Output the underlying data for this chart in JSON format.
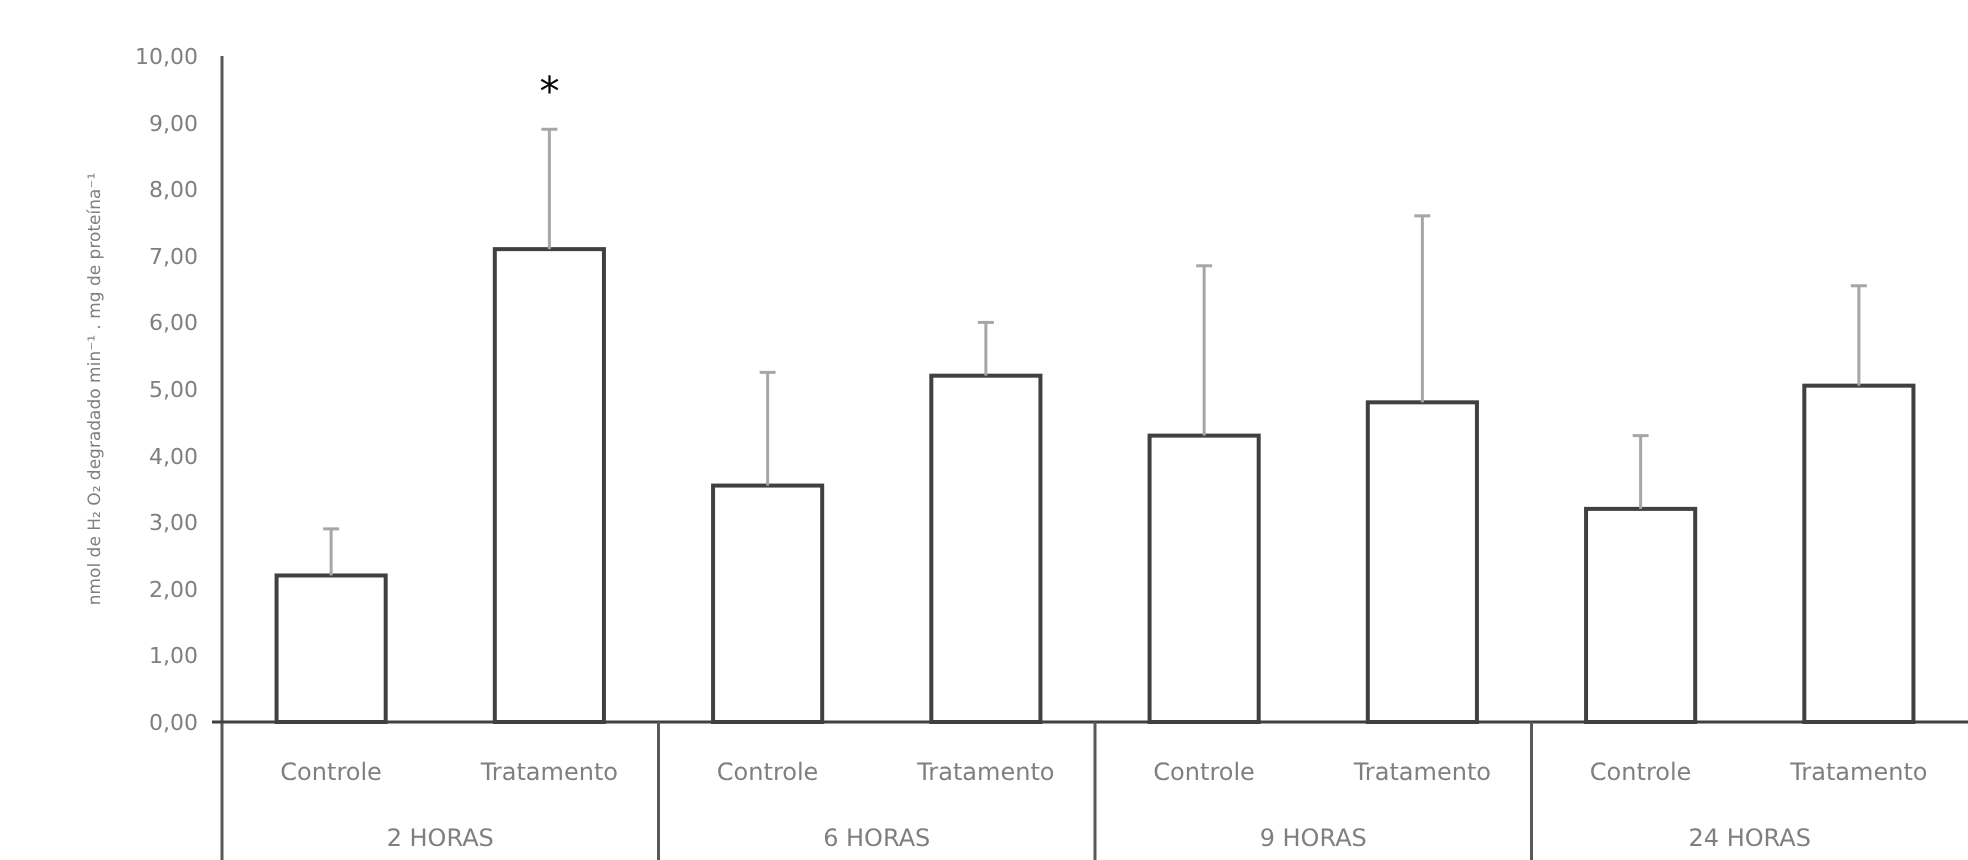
{
  "chart_data": {
    "type": "bar",
    "ylabel": "nmol de H₂ O₂ degradado min⁻¹ . mg de proteína⁻¹",
    "categories": [
      "Controle",
      "Tratamento",
      "Controle",
      "Tratamento",
      "Controle",
      "Tratamento",
      "Controle",
      "Tratamento"
    ],
    "values": [
      2.2,
      7.1,
      3.55,
      5.2,
      4.3,
      4.8,
      3.2,
      5.05
    ],
    "errors": [
      [
        2.2,
        2.9
      ],
      [
        7.1,
        8.9
      ],
      [
        3.55,
        5.25
      ],
      [
        5.2,
        6.0
      ],
      [
        4.3,
        6.85
      ],
      [
        4.8,
        7.6
      ],
      [
        3.2,
        4.3
      ],
      [
        5.05,
        6.55
      ]
    ],
    "color": "#ffffff",
    "ylim": [
      0,
      10
    ],
    "yticks": [
      {
        "value": 0,
        "label": "0,00"
      },
      {
        "value": 1,
        "label": "1,00"
      },
      {
        "value": 2,
        "label": "2,00"
      },
      {
        "value": 3,
        "label": "3,00"
      },
      {
        "value": 4,
        "label": "4,00"
      },
      {
        "value": 5,
        "label": "5,00"
      },
      {
        "value": 6,
        "label": "6,00"
      },
      {
        "value": 7,
        "label": "7,00"
      },
      {
        "value": 8,
        "label": "8,00"
      },
      {
        "value": 9,
        "label": "9,00"
      },
      {
        "value": 10,
        "label": "10,00"
      }
    ],
    "annotations": [
      "2 HORAS",
      "6 HORAS",
      "9 HORAS",
      "24 HORAS",
      {
        "text": "*",
        "x": "Tratamento",
        "y": 8.9
      }
    ]
  }
}
